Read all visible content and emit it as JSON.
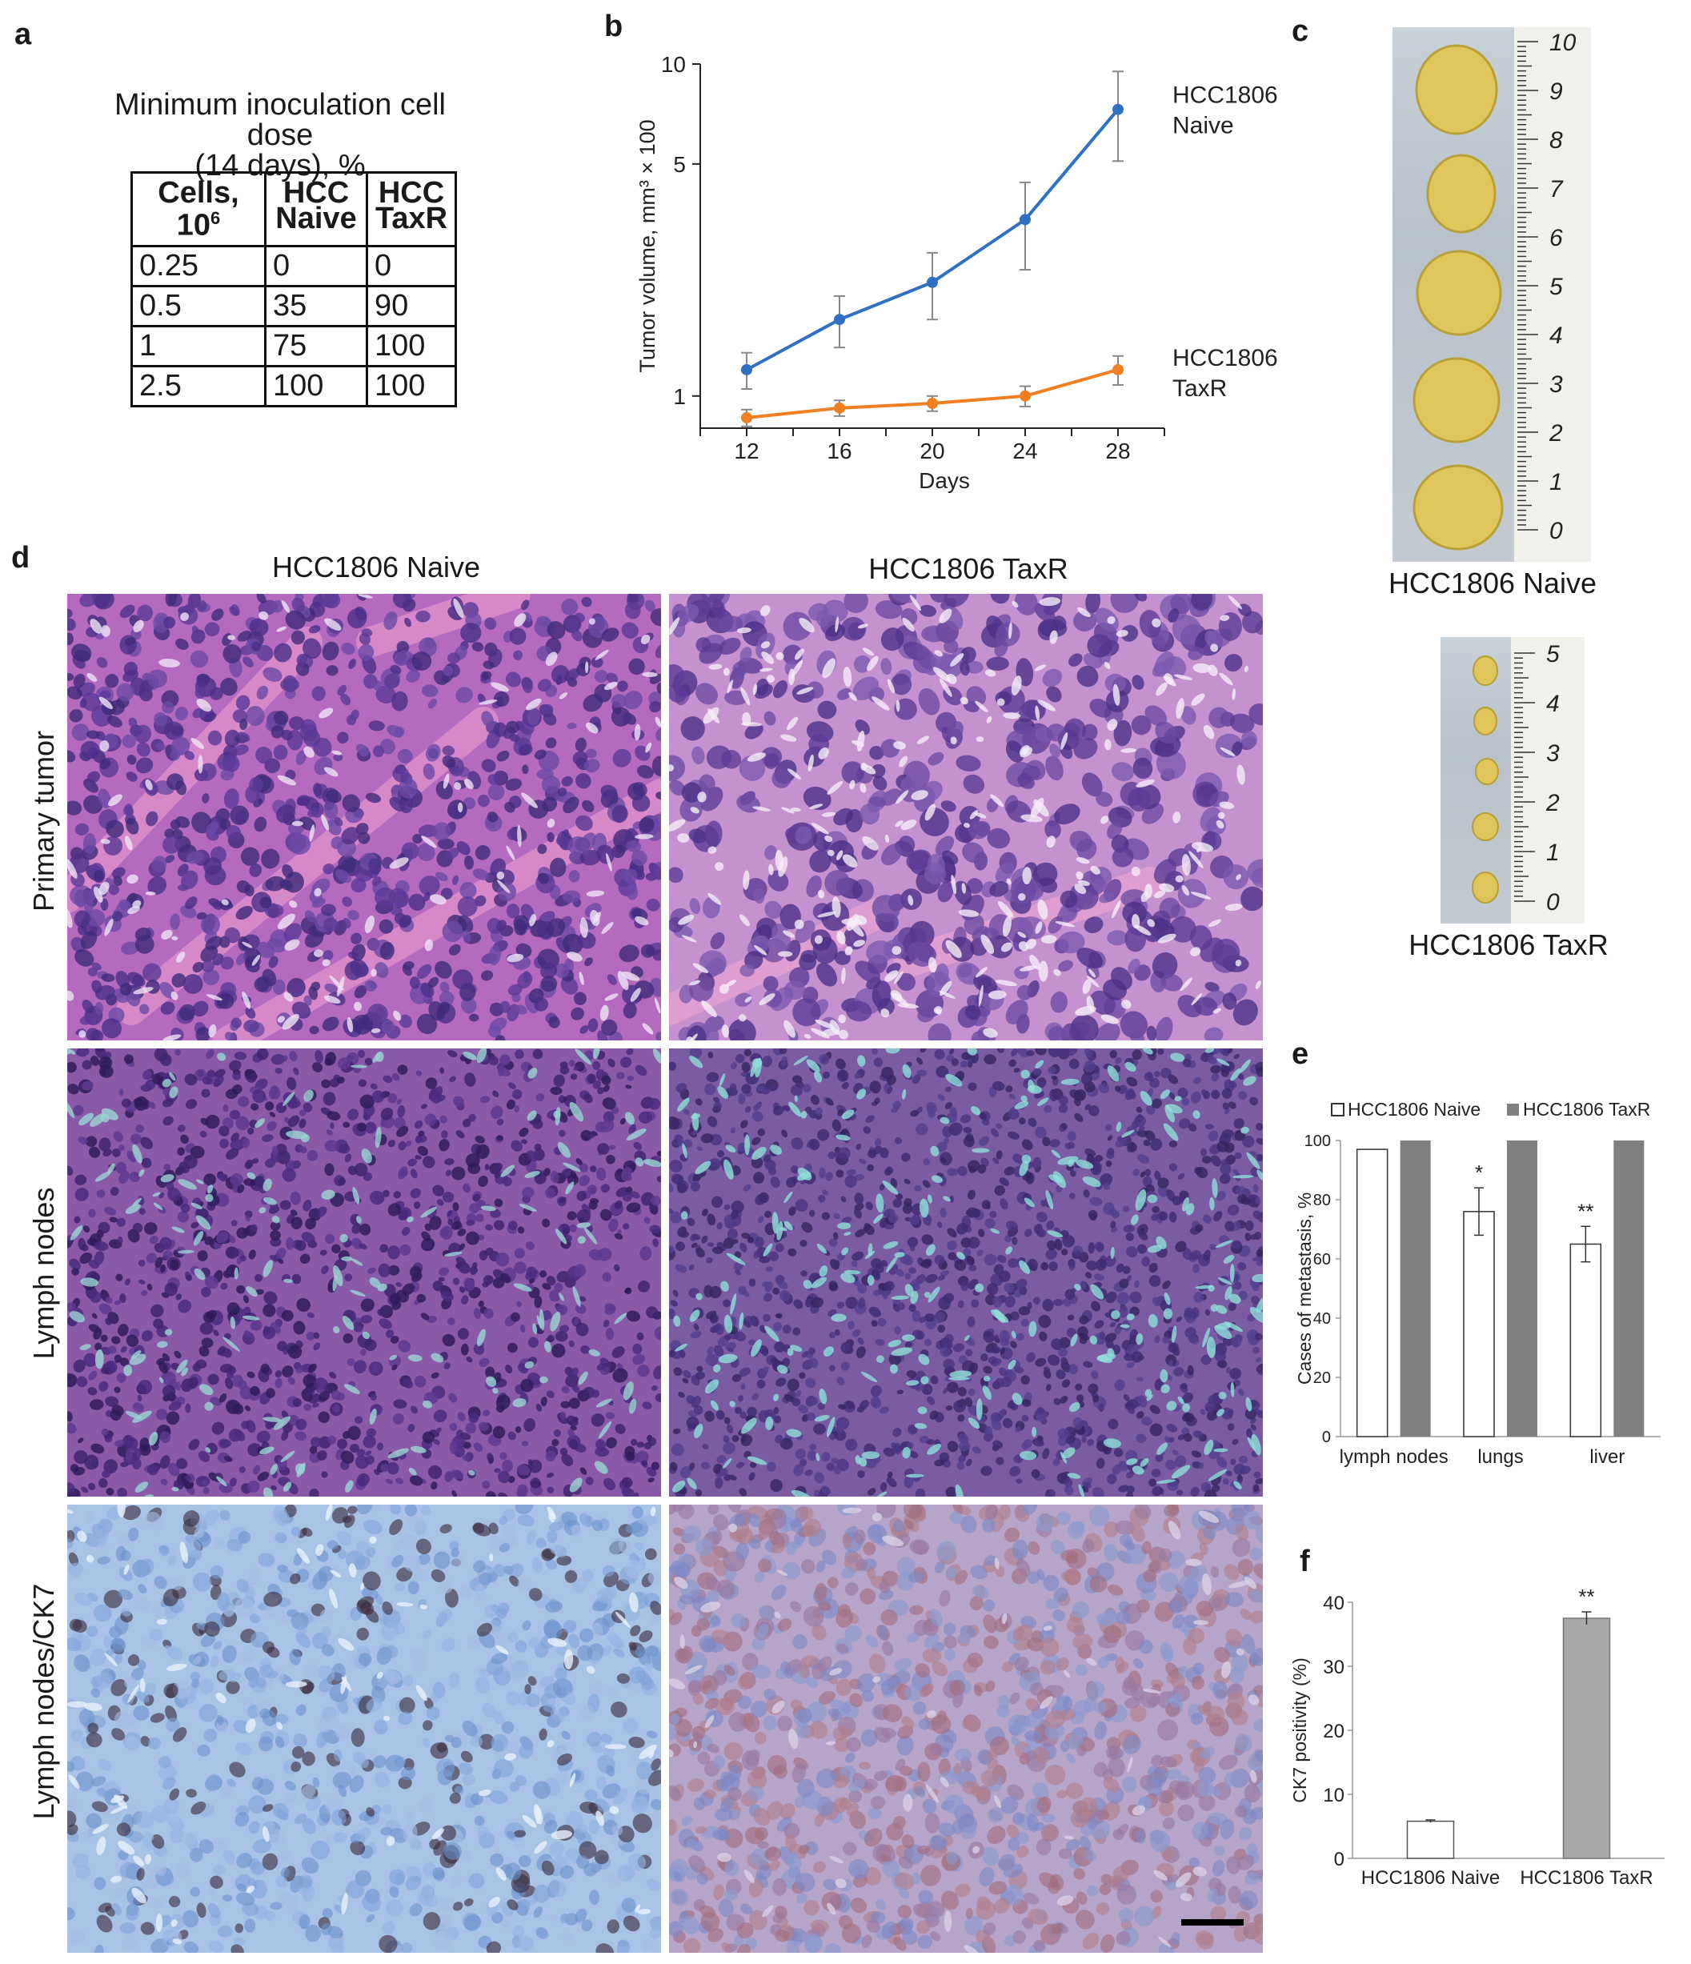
{
  "panels": {
    "a": {
      "letter": "a",
      "title_line1": "Minimum inoculation cell dose",
      "title_line2": "(14 days), %",
      "headers": {
        "cells_line1": "Cells,",
        "cells_line2": "10",
        "cells_sup": "6",
        "naive_line1": "HCC",
        "naive_line2": "Naive",
        "taxr_line1": "HCC",
        "taxr_line2": "TaxR"
      },
      "rows": [
        [
          "0.25",
          "0",
          "0"
        ],
        [
          "0.5",
          "35",
          "90"
        ],
        [
          "1",
          "75",
          "100"
        ],
        [
          "2.5",
          "100",
          "100"
        ]
      ]
    },
    "b": {
      "letter": "b"
    },
    "c": {
      "letter": "c",
      "caption_naive": "HCC1806 Naive",
      "caption_taxr": "HCC1806 TaxR",
      "ruler_naive_labels": [
        "0",
        "1",
        "2",
        "3",
        "4",
        "5",
        "6",
        "7",
        "8",
        "9",
        "10"
      ],
      "ruler_taxr_labels": [
        "0",
        "1",
        "2",
        "3",
        "4",
        "5"
      ]
    },
    "d": {
      "letter": "d",
      "col_naive": "HCC1806 Naive",
      "col_taxr": "HCC1806 TaxR",
      "row_primary": "Primary  tumor",
      "row_lymph": "Lymph nodes",
      "row_ck7": "Lymph nodes/CK7"
    },
    "e": {
      "letter": "e"
    },
    "f": {
      "letter": "f"
    }
  },
  "colors": {
    "naive_line": "#2f6fc4",
    "taxr_line": "#f07f22",
    "taxr_bar_e": "#808080",
    "taxr_bar_f": "#a8a8a8",
    "he_primary": "#b46bbf",
    "he_lymph": "#8a5aa8",
    "ck7_bg_naive": "#a9c3e6",
    "ck7_bg_taxr": "#b7a5c9"
  },
  "chart_data": [
    {
      "id": "b",
      "type": "line",
      "x": [
        12,
        16,
        20,
        24,
        28
      ],
      "xlabel": "Days",
      "ylabel": "Tumor volume, mm³ × 100",
      "y_scale": "log",
      "ylim": [
        0.8,
        10
      ],
      "yticks": [
        1,
        5,
        10
      ],
      "xticks": [
        12,
        16,
        20,
        24,
        28
      ],
      "series": [
        {
          "name_line1": "HCC1806",
          "name_line2": "Naive",
          "values": [
            1.2,
            1.7,
            2.2,
            3.4,
            7.3
          ],
          "err": [
            0.15,
            0.3,
            0.5,
            1.0,
            2.2
          ]
        },
        {
          "name_line1": "HCC1806",
          "name_line2": "TaxR",
          "values": [
            0.86,
            0.92,
            0.95,
            1.0,
            1.2
          ],
          "err": [
            0.05,
            0.05,
            0.05,
            0.07,
            0.12
          ]
        }
      ]
    },
    {
      "id": "e",
      "type": "bar",
      "categories": [
        "lymph nodes",
        "lungs",
        "liver"
      ],
      "ylabel": "Cases of metastasis, %",
      "ylim": [
        0,
        100
      ],
      "yticks": [
        0,
        20,
        40,
        60,
        80,
        100
      ],
      "legend_position": "top",
      "series": [
        {
          "name": "HCC1806 Naive",
          "values": [
            97,
            76,
            65
          ],
          "err": [
            0,
            8,
            6
          ],
          "sig": [
            "",
            "*",
            "**"
          ]
        },
        {
          "name": "HCC1806 TaxR",
          "values": [
            100,
            100,
            100
          ],
          "err": [
            0,
            0,
            0
          ],
          "sig": [
            "",
            "",
            ""
          ]
        }
      ]
    },
    {
      "id": "f",
      "type": "bar",
      "categories": [
        "HCC1806 Naive",
        "HCC1806 TaxR"
      ],
      "ylabel": "CK7 positivity (%)",
      "ylim": [
        0,
        40
      ],
      "yticks": [
        0,
        10,
        20,
        30,
        40
      ],
      "values": [
        5.8,
        37.5
      ],
      "err": [
        0.2,
        1.0
      ],
      "sig": [
        "",
        "**"
      ]
    }
  ]
}
